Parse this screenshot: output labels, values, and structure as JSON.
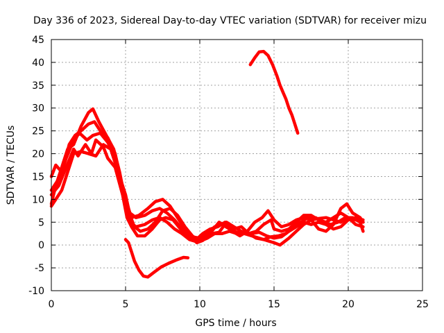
{
  "chart_data": {
    "type": "line",
    "title": "Day 336 of 2023, Sidereal Day-to-day VTEC variation (SDTVAR) for receiver mizu",
    "xlabel": "GPS time / hours",
    "ylabel": "SDTVAR / TECUs",
    "xlim": [
      0,
      25
    ],
    "ylim": [
      -10,
      45
    ],
    "xticks": [
      0,
      5,
      10,
      15,
      20,
      25
    ],
    "yticks": [
      -10,
      -5,
      0,
      5,
      10,
      15,
      20,
      25,
      30,
      35,
      40,
      45
    ],
    "grid": true,
    "color": "#ff0000",
    "series": [
      {
        "name": "trace-1",
        "points": [
          [
            0.0,
            9
          ],
          [
            0.3,
            13
          ],
          [
            0.7,
            17
          ],
          [
            1.1,
            21
          ],
          [
            1.5,
            22
          ],
          [
            2.0,
            26
          ],
          [
            2.5,
            29
          ],
          [
            2.8,
            29.8
          ],
          [
            3.2,
            27
          ],
          [
            3.7,
            24
          ],
          [
            4.2,
            21
          ],
          [
            4.6,
            16
          ],
          [
            4.9,
            11
          ],
          [
            5.1,
            8
          ],
          [
            5.4,
            6
          ],
          [
            5.9,
            6.5
          ],
          [
            6.5,
            8
          ],
          [
            7.0,
            9.5
          ],
          [
            7.5,
            10
          ],
          [
            8.0,
            8.5
          ],
          [
            8.5,
            6
          ],
          [
            9.0,
            3.5
          ],
          [
            9.5,
            1.8
          ],
          [
            10.0,
            1.5
          ],
          [
            10.5,
            2.5
          ],
          [
            11.0,
            4
          ],
          [
            11.5,
            4.5
          ],
          [
            12.0,
            3.5
          ],
          [
            12.5,
            2.8
          ],
          [
            13.0,
            2.5
          ],
          [
            13.5,
            2
          ],
          [
            14.0,
            1.5
          ],
          [
            14.5,
            1
          ],
          [
            15.0,
            0.5
          ],
          [
            15.4,
            0
          ],
          [
            16.0,
            1.5
          ],
          [
            16.5,
            3
          ],
          [
            17.0,
            4.5
          ],
          [
            17.5,
            5.5
          ],
          [
            18.0,
            5.8
          ],
          [
            18.5,
            6
          ],
          [
            19.0,
            5.5
          ],
          [
            19.5,
            5
          ],
          [
            20.0,
            6
          ],
          [
            20.5,
            5.5
          ],
          [
            21.0,
            5
          ]
        ]
      },
      {
        "name": "trace-2",
        "points": [
          [
            0.0,
            12
          ],
          [
            0.4,
            14
          ],
          [
            0.8,
            17
          ],
          [
            1.2,
            22
          ],
          [
            1.6,
            24
          ],
          [
            2.0,
            25
          ],
          [
            2.5,
            26.5
          ],
          [
            2.9,
            27
          ],
          [
            3.3,
            25
          ],
          [
            3.8,
            23.5
          ],
          [
            4.3,
            20
          ],
          [
            4.7,
            14
          ],
          [
            5.0,
            10
          ],
          [
            5.3,
            7
          ],
          [
            5.7,
            6
          ],
          [
            6.3,
            6.5
          ],
          [
            6.8,
            7.5
          ],
          [
            7.3,
            8
          ],
          [
            7.8,
            7
          ],
          [
            8.3,
            5.5
          ],
          [
            8.8,
            3.5
          ],
          [
            9.3,
            2
          ],
          [
            9.8,
            0.5
          ],
          [
            10.2,
            1
          ],
          [
            10.8,
            3
          ],
          [
            11.3,
            5
          ],
          [
            11.8,
            4
          ],
          [
            12.3,
            3.5
          ],
          [
            12.8,
            4
          ],
          [
            13.3,
            2.5
          ],
          [
            13.8,
            1.5
          ],
          [
            14.3,
            1.2
          ],
          [
            14.8,
            1.8
          ],
          [
            15.3,
            2
          ],
          [
            15.8,
            2.5
          ],
          [
            16.3,
            4
          ],
          [
            16.8,
            5
          ],
          [
            17.3,
            6
          ],
          [
            17.8,
            6
          ],
          [
            18.3,
            5
          ],
          [
            18.8,
            4.5
          ],
          [
            19.3,
            5
          ],
          [
            19.8,
            6
          ],
          [
            20.3,
            6
          ],
          [
            20.8,
            5
          ],
          [
            21.0,
            3
          ]
        ]
      },
      {
        "name": "trace-3",
        "points": [
          [
            0.0,
            15
          ],
          [
            0.3,
            17.5
          ],
          [
            0.7,
            16
          ],
          [
            1.0,
            19
          ],
          [
            1.5,
            23
          ],
          [
            1.9,
            24.5
          ],
          [
            2.4,
            23
          ],
          [
            2.8,
            24
          ],
          [
            3.3,
            24.5
          ],
          [
            3.8,
            22.5
          ],
          [
            4.3,
            19
          ],
          [
            4.7,
            13
          ],
          [
            5.0,
            8
          ],
          [
            5.3,
            5
          ],
          [
            5.7,
            4
          ],
          [
            6.3,
            4.5
          ],
          [
            6.8,
            5.5
          ],
          [
            7.3,
            6
          ],
          [
            7.8,
            5
          ],
          [
            8.3,
            3.5
          ],
          [
            8.8,
            2.5
          ],
          [
            9.3,
            1.2
          ],
          [
            9.7,
            0.8
          ],
          [
            10.3,
            2
          ],
          [
            10.8,
            2.5
          ],
          [
            11.3,
            2.8
          ],
          [
            11.8,
            5
          ],
          [
            12.3,
            4
          ],
          [
            12.8,
            3
          ],
          [
            13.3,
            2.5
          ],
          [
            13.8,
            3
          ],
          [
            14.3,
            4.5
          ],
          [
            14.8,
            5.5
          ],
          [
            15.0,
            3.5
          ],
          [
            15.5,
            3
          ],
          [
            16.0,
            3.5
          ],
          [
            16.5,
            5
          ],
          [
            17.0,
            6.5
          ],
          [
            17.5,
            6.5
          ],
          [
            18.0,
            5.5
          ],
          [
            18.5,
            5
          ],
          [
            19.0,
            6
          ],
          [
            19.5,
            7
          ],
          [
            20.0,
            6
          ],
          [
            20.5,
            4.5
          ],
          [
            21.0,
            4
          ]
        ]
      },
      {
        "name": "trace-4",
        "points": [
          [
            0.0,
            11
          ],
          [
            0.5,
            13
          ],
          [
            1.0,
            17
          ],
          [
            1.5,
            21
          ],
          [
            1.8,
            19.5
          ],
          [
            2.3,
            22
          ],
          [
            2.7,
            20
          ],
          [
            3.0,
            23
          ],
          [
            3.5,
            21.5
          ],
          [
            3.8,
            19
          ],
          [
            4.3,
            17
          ],
          [
            4.8,
            11
          ],
          [
            5.1,
            6
          ],
          [
            5.4,
            4
          ],
          [
            5.8,
            2
          ],
          [
            6.3,
            2
          ],
          [
            6.8,
            3.5
          ],
          [
            7.3,
            5.5
          ],
          [
            7.7,
            6
          ],
          [
            8.2,
            5.5
          ],
          [
            8.7,
            3.5
          ],
          [
            9.2,
            2
          ],
          [
            9.7,
            1
          ],
          [
            10.2,
            2.5
          ],
          [
            10.7,
            3.5
          ],
          [
            11.2,
            4
          ],
          [
            11.7,
            5
          ],
          [
            12.2,
            3
          ],
          [
            12.7,
            2
          ],
          [
            13.2,
            3
          ],
          [
            13.7,
            5
          ],
          [
            14.2,
            6
          ],
          [
            14.6,
            7.5
          ],
          [
            15.0,
            5.5
          ],
          [
            15.5,
            4
          ],
          [
            16.0,
            4.5
          ],
          [
            16.5,
            5.5
          ],
          [
            17.0,
            6
          ],
          [
            17.5,
            5.5
          ],
          [
            18.0,
            3.5
          ],
          [
            18.5,
            3
          ],
          [
            19.0,
            4.5
          ],
          [
            19.5,
            8
          ],
          [
            19.9,
            9
          ],
          [
            20.3,
            7
          ],
          [
            20.8,
            6
          ],
          [
            21.0,
            5
          ]
        ]
      },
      {
        "name": "trace-5",
        "points": [
          [
            0.0,
            8.5
          ],
          [
            0.3,
            10
          ],
          [
            0.7,
            12
          ],
          [
            1.0,
            15
          ],
          [
            1.5,
            20
          ],
          [
            2.0,
            20.5
          ],
          [
            2.5,
            20
          ],
          [
            3.0,
            19.5
          ],
          [
            3.5,
            22
          ],
          [
            4.0,
            21
          ],
          [
            4.5,
            16
          ],
          [
            5.0,
            11
          ],
          [
            5.3,
            6.5
          ],
          [
            5.6,
            4
          ],
          [
            6.0,
            3
          ],
          [
            6.5,
            3.5
          ],
          [
            7.0,
            5
          ],
          [
            7.5,
            7.5
          ],
          [
            8.0,
            8
          ],
          [
            8.5,
            6.5
          ],
          [
            9.0,
            4
          ],
          [
            9.5,
            2
          ],
          [
            10.0,
            0.8
          ],
          [
            10.5,
            1.5
          ],
          [
            11.0,
            2.5
          ],
          [
            11.5,
            2.5
          ],
          [
            12.0,
            3
          ],
          [
            12.5,
            2.5
          ],
          [
            13.0,
            2.8
          ],
          [
            13.5,
            2.5
          ],
          [
            14.0,
            2.8
          ],
          [
            14.5,
            2
          ],
          [
            15.0,
            1.5
          ],
          [
            15.5,
            1.8
          ],
          [
            16.0,
            3
          ],
          [
            16.5,
            4
          ],
          [
            17.0,
            5
          ],
          [
            17.5,
            4.5
          ],
          [
            18.0,
            5
          ],
          [
            18.5,
            4.5
          ],
          [
            19.0,
            3.5
          ],
          [
            19.5,
            4
          ],
          [
            20.0,
            5.5
          ],
          [
            20.5,
            6
          ],
          [
            21.0,
            5.5
          ]
        ]
      },
      {
        "name": "trace-6",
        "points": [
          [
            5.0,
            1.2
          ],
          [
            5.2,
            0.5
          ],
          [
            5.4,
            -1.5
          ],
          [
            5.6,
            -3.5
          ],
          [
            5.9,
            -5.5
          ],
          [
            6.2,
            -6.8
          ],
          [
            6.5,
            -7
          ],
          [
            6.9,
            -6
          ],
          [
            7.4,
            -4.8
          ],
          [
            7.9,
            -4
          ],
          [
            8.4,
            -3.3
          ],
          [
            8.9,
            -2.7
          ],
          [
            9.2,
            -2.8
          ]
        ]
      },
      {
        "name": "trace-7",
        "points": [
          [
            13.4,
            39.5
          ],
          [
            13.7,
            41
          ],
          [
            14.0,
            42.3
          ],
          [
            14.3,
            42.4
          ],
          [
            14.6,
            41.5
          ],
          [
            14.9,
            39.5
          ],
          [
            15.2,
            37
          ],
          [
            15.4,
            35
          ],
          [
            15.6,
            33.5
          ],
          [
            15.8,
            32
          ],
          [
            16.0,
            30
          ],
          [
            16.2,
            28.5
          ],
          [
            16.4,
            26.5
          ],
          [
            16.6,
            24.5
          ]
        ]
      }
    ]
  }
}
